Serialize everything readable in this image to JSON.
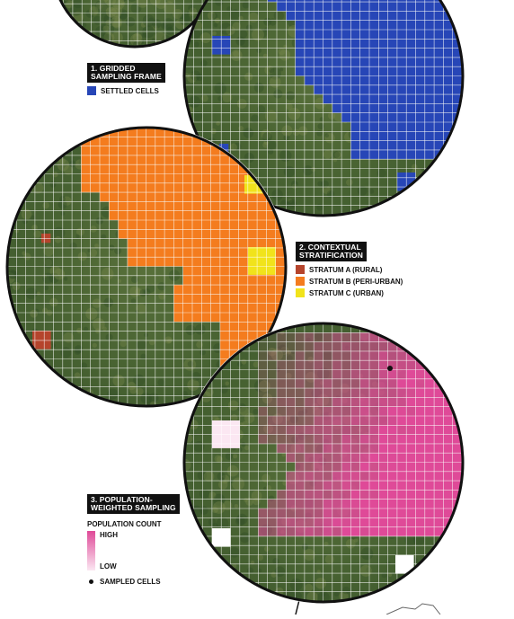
{
  "colors": {
    "settled": "#2746b7",
    "stratum_a": "#b5442c",
    "stratum_b": "#f47c1e",
    "stratum_c": "#f1e31b",
    "pop_high": "#df4a98",
    "pop_low": "#fbe7f2",
    "land_dark": "#3c5a2c",
    "land_light": "#6f8048",
    "grid": "#ffffff"
  },
  "legend1": {
    "title_line1": "1. GRIDDED",
    "title_line2": "SAMPLING FRAME",
    "items": [
      {
        "label": "SETTLED CELLS",
        "color": "#2746b7"
      }
    ]
  },
  "legend2": {
    "title_line1": "2. CONTEXTUAL",
    "title_line2": "STRATIFICATION",
    "items": [
      {
        "label": "STRATUM A (RURAL)",
        "color": "#b5442c"
      },
      {
        "label": "STRATUM B (PERI-URBAN)",
        "color": "#f47c1e"
      },
      {
        "label": "STRATUM C (URBAN)",
        "color": "#f1e31b"
      }
    ]
  },
  "legend3": {
    "title_line1": "3. POPULATION-",
    "title_line2": "WEIGHTED SAMPLING",
    "population_heading": "POPULATION COUNT",
    "high_label": "HIGH",
    "low_label": "LOW",
    "sampled_label": "SAMPLED CELLS"
  }
}
